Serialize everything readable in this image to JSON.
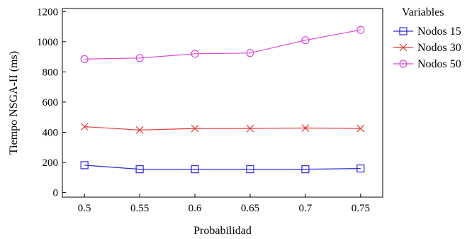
{
  "chart_data": {
    "type": "line",
    "xlabel": "Probabilidad",
    "ylabel": "Tiempo NSGA-II (ms)",
    "x": [
      0.5,
      0.55,
      0.6,
      0.65,
      0.7,
      0.75
    ],
    "xlim": [
      0.48,
      0.77
    ],
    "ylim": [
      -30,
      1220
    ],
    "xticks": [
      "0.5",
      "0.55",
      "0.6",
      "0.65",
      "0.7",
      "0.75"
    ],
    "yticks": [
      "0",
      "200",
      "400",
      "600",
      "800",
      "1000",
      "1200"
    ],
    "grid": false,
    "legend_title": "Variables",
    "legend_position": "right",
    "series": [
      {
        "name": "Nodos 15",
        "color": "#2b2bd6",
        "marker": "square",
        "values": [
          182,
          155,
          155,
          155,
          155,
          160
        ]
      },
      {
        "name": "Nodos 30",
        "color": "#e23a3a",
        "marker": "x",
        "values": [
          437,
          415,
          425,
          425,
          428,
          425
        ]
      },
      {
        "name": "Nodos 50",
        "color": "#d94ad9",
        "marker": "circle",
        "values": [
          885,
          892,
          920,
          925,
          1010,
          1078
        ]
      }
    ]
  }
}
